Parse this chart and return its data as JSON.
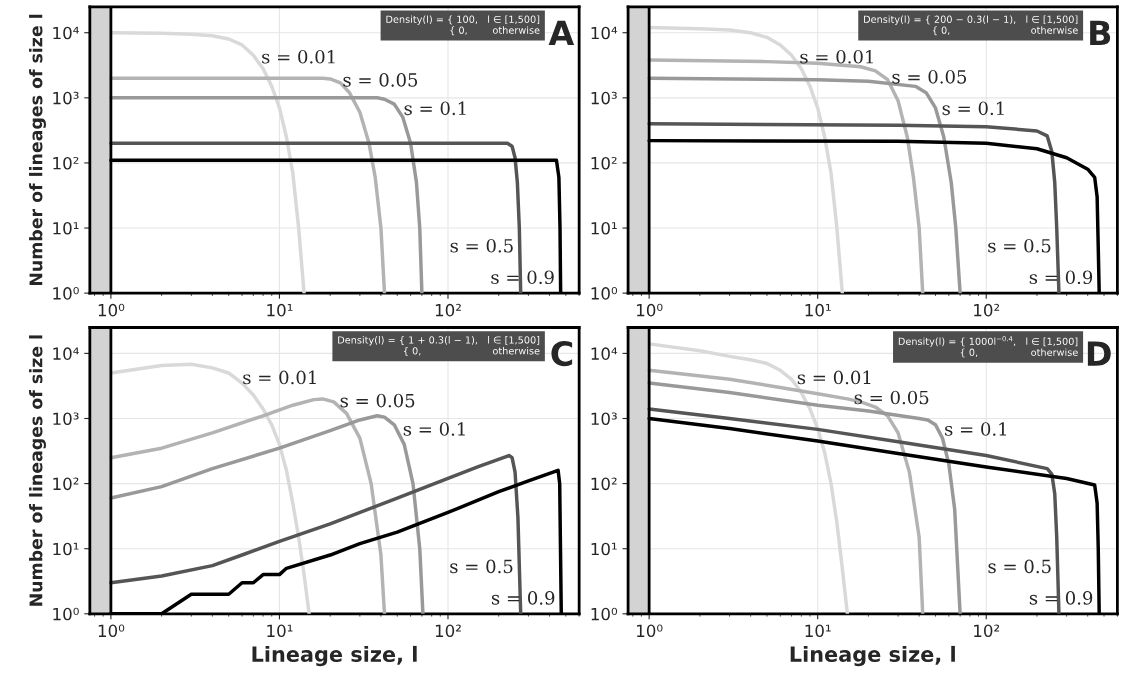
{
  "chart_data": [
    {
      "type": "line",
      "ylabel": "Number of lineages of size l",
      "annotations": [
        "Density(l) = { 100,   l ∈ [1,500]\n              { 0,        otherwise",
        "A"
      ],
      "log": "xy",
      "grid": true,
      "legend": false,
      "xlim": [
        0.75,
        600
      ],
      "ylim": [
        1,
        25000
      ],
      "xticks": [
        {
          "value": 1,
          "label": "10⁰"
        },
        {
          "value": 10,
          "label": "10¹"
        },
        {
          "value": 100,
          "label": "10²"
        }
      ],
      "yticks": [
        {
          "value": 1,
          "label": "10⁰"
        },
        {
          "value": 10,
          "label": "10¹"
        },
        {
          "value": 100,
          "label": "10²"
        },
        {
          "value": 1000,
          "label": "10³"
        },
        {
          "value": 10000,
          "label": "10⁴"
        }
      ],
      "bands": [
        {
          "axis": "x",
          "from": 0.75,
          "to": 1,
          "color": "#d3d3d3"
        }
      ],
      "ref_lines": [
        {
          "axis": "x",
          "value": 1,
          "color": "#000000"
        }
      ],
      "series": [
        {
          "name": "s = 0.01",
          "color": "#d9d9d9",
          "x": [
            1,
            2,
            3,
            4,
            5,
            6,
            7,
            8,
            9,
            10,
            11,
            12,
            13,
            14
          ],
          "values": [
            10000,
            9800,
            9500,
            9000,
            8000,
            6500,
            4500,
            2800,
            1500,
            700,
            250,
            70,
            10,
            1
          ]
        },
        {
          "name": "s = 0.05",
          "color": "#b3b3b3",
          "x": [
            1,
            10,
            18,
            20,
            23,
            26,
            30,
            34,
            37,
            40,
            42
          ],
          "values": [
            2000,
            2000,
            2000,
            1950,
            1700,
            1200,
            600,
            200,
            60,
            10,
            1
          ]
        },
        {
          "name": "s = 0.1",
          "color": "#999999",
          "x": [
            1,
            20,
            38,
            42,
            48,
            54,
            60,
            65,
            68,
            70
          ],
          "values": [
            1000,
            1000,
            1000,
            950,
            800,
            500,
            200,
            50,
            10,
            1
          ]
        },
        {
          "name": "s = 0.5",
          "color": "#555555",
          "x": [
            1,
            100,
            225,
            240,
            250,
            258,
            265,
            270
          ],
          "values": [
            200,
            200,
            200,
            180,
            120,
            50,
            10,
            1
          ]
        },
        {
          "name": "s = 0.9",
          "color": "#000000",
          "x": [
            1,
            100,
            300,
            440,
            455,
            462,
            466
          ],
          "values": [
            110,
            110,
            110,
            110,
            60,
            10,
            1
          ]
        }
      ]
    },
    {
      "type": "line",
      "annotations": [
        "Density(l) = { 200 − 0.3(l − 1),   l ∈ [1,500]\n              { 0,                          otherwise",
        "B"
      ],
      "log": "xy",
      "grid": true,
      "legend": false,
      "xlim": [
        0.75,
        600
      ],
      "ylim": [
        1,
        25000
      ],
      "xticks": [
        {
          "value": 1,
          "label": "10⁰"
        },
        {
          "value": 10,
          "label": "10¹"
        },
        {
          "value": 100,
          "label": "10²"
        }
      ],
      "yticks": [
        {
          "value": 1,
          "label": "10⁰"
        },
        {
          "value": 10,
          "label": "10¹"
        },
        {
          "value": 100,
          "label": "10²"
        },
        {
          "value": 1000,
          "label": "10³"
        },
        {
          "value": 10000,
          "label": "10⁴"
        }
      ],
      "bands": [
        {
          "axis": "x",
          "from": 0.75,
          "to": 1,
          "color": "#d3d3d3"
        }
      ],
      "ref_lines": [
        {
          "axis": "x",
          "value": 1,
          "color": "#000000"
        }
      ],
      "series": [
        {
          "name": "s = 0.01",
          "color": "#d9d9d9",
          "x": [
            1,
            2,
            3,
            4,
            5,
            6,
            7,
            8,
            9,
            10,
            11,
            12,
            13,
            14
          ],
          "values": [
            12000,
            11500,
            11000,
            10000,
            8500,
            6500,
            4500,
            2800,
            1500,
            700,
            250,
            70,
            10,
            1
          ]
        },
        {
          "name": "s = 0.05",
          "color": "#b3b3b3",
          "x": [
            1,
            5,
            10,
            18,
            22,
            26,
            30,
            34,
            37,
            40,
            42
          ],
          "values": [
            3800,
            3600,
            3400,
            3000,
            2600,
            1900,
            900,
            250,
            60,
            10,
            1
          ]
        },
        {
          "name": "s = 0.1",
          "color": "#999999",
          "x": [
            1,
            10,
            20,
            38,
            44,
            50,
            56,
            62,
            66,
            70
          ],
          "values": [
            2000,
            1900,
            1800,
            1500,
            1200,
            700,
            250,
            50,
            10,
            1
          ]
        },
        {
          "name": "s = 0.5",
          "color": "#555555",
          "x": [
            1,
            30,
            100,
            200,
            230,
            245,
            255,
            262,
            270
          ],
          "values": [
            400,
            380,
            360,
            310,
            260,
            150,
            50,
            10,
            1
          ]
        },
        {
          "name": "s = 0.9",
          "color": "#000000",
          "x": [
            1,
            30,
            100,
            200,
            300,
            400,
            440,
            455,
            462,
            468
          ],
          "values": [
            220,
            215,
            200,
            165,
            120,
            80,
            60,
            30,
            5,
            1
          ]
        }
      ]
    },
    {
      "type": "line",
      "xlabel": "Lineage size, l",
      "ylabel": "Number of lineages of size l",
      "annotations": [
        "Density(l) = { 1 + 0.3(l − 1),   l ∈ [1,500]\n              { 0,                       otherwise",
        "C"
      ],
      "log": "xy",
      "grid": true,
      "legend": false,
      "xlim": [
        0.75,
        600
      ],
      "ylim": [
        1,
        25000
      ],
      "xticks": [
        {
          "value": 1,
          "label": "10⁰"
        },
        {
          "value": 10,
          "label": "10¹"
        },
        {
          "value": 100,
          "label": "10²"
        }
      ],
      "yticks": [
        {
          "value": 1,
          "label": "10⁰"
        },
        {
          "value": 10,
          "label": "10¹"
        },
        {
          "value": 100,
          "label": "10²"
        },
        {
          "value": 1000,
          "label": "10³"
        },
        {
          "value": 10000,
          "label": "10⁴"
        }
      ],
      "bands": [
        {
          "axis": "x",
          "from": 0.75,
          "to": 1,
          "color": "#d3d3d3"
        }
      ],
      "ref_lines": [
        {
          "axis": "x",
          "value": 1,
          "color": "#000000"
        }
      ],
      "series": [
        {
          "name": "s = 0.01",
          "color": "#d9d9d9",
          "x": [
            1,
            2,
            3,
            4,
            5,
            6,
            7,
            8,
            9,
            10,
            11,
            12,
            13,
            14,
            15
          ],
          "values": [
            5000,
            6500,
            6800,
            6000,
            5000,
            3500,
            2300,
            1400,
            800,
            400,
            160,
            50,
            15,
            4,
            1
          ]
        },
        {
          "name": "s = 0.05",
          "color": "#b3b3b3",
          "x": [
            1,
            2,
            4,
            8,
            12,
            16,
            18,
            21,
            25,
            30,
            35,
            40,
            42
          ],
          "values": [
            250,
            350,
            600,
            1100,
            1600,
            1950,
            2000,
            1800,
            1200,
            500,
            100,
            8,
            1
          ]
        },
        {
          "name": "s = 0.1",
          "color": "#999999",
          "x": [
            1,
            2,
            4,
            10,
            20,
            30,
            38,
            42,
            48,
            55,
            62,
            68,
            71
          ],
          "values": [
            60,
            90,
            170,
            350,
            650,
            950,
            1100,
            1050,
            800,
            400,
            100,
            10,
            1
          ]
        },
        {
          "name": "s = 0.5",
          "color": "#555555",
          "x": [
            1,
            2,
            4,
            6,
            10,
            20,
            50,
            100,
            150,
            230,
            240,
            250,
            260,
            270
          ],
          "values": [
            3,
            3.8,
            5.5,
            8,
            13,
            24,
            60,
            120,
            180,
            270,
            250,
            150,
            30,
            1
          ]
        },
        {
          "name": "s = 0.9",
          "color": "#000000",
          "x": [
            1,
            2,
            3,
            5,
            6,
            7,
            8,
            10,
            11,
            20,
            30,
            50,
            100,
            200,
            300,
            450,
            460,
            465,
            470
          ],
          "values": [
            1,
            1,
            2,
            2,
            3,
            3,
            4,
            4,
            5,
            8,
            12,
            18,
            36,
            75,
            110,
            160,
            100,
            10,
            1
          ]
        }
      ]
    },
    {
      "type": "line",
      "xlabel": "Lineage size, l",
      "annotations": [
        "Density(l) = { 1000l$^{−0.4}$,   l ∈ [1,500]\n              { 0,                 otherwise",
        "D"
      ],
      "log": "xy",
      "grid": true,
      "legend": false,
      "xlim": [
        0.75,
        600
      ],
      "ylim": [
        1,
        25000
      ],
      "xticks": [
        {
          "value": 1,
          "label": "10⁰"
        },
        {
          "value": 10,
          "label": "10¹"
        },
        {
          "value": 100,
          "label": "10²"
        }
      ],
      "yticks": [
        {
          "value": 1,
          "label": "10⁰"
        },
        {
          "value": 10,
          "label": "10¹"
        },
        {
          "value": 100,
          "label": "10²"
        },
        {
          "value": 1000,
          "label": "10³"
        },
        {
          "value": 10000,
          "label": "10⁴"
        }
      ],
      "bands": [
        {
          "axis": "x",
          "from": 0.75,
          "to": 1,
          "color": "#d3d3d3"
        }
      ],
      "ref_lines": [
        {
          "axis": "x",
          "value": 1,
          "color": "#000000"
        }
      ],
      "series": [
        {
          "name": "s = 0.01",
          "color": "#d9d9d9",
          "x": [
            1,
            2,
            3,
            4,
            5,
            6,
            7,
            8,
            9,
            10,
            11,
            12,
            13,
            14,
            15
          ],
          "values": [
            14000,
            11000,
            9000,
            8000,
            7000,
            5500,
            4000,
            2500,
            1400,
            700,
            300,
            100,
            25,
            5,
            1
          ]
        },
        {
          "name": "s = 0.05",
          "color": "#b3b3b3",
          "x": [
            1,
            3,
            6,
            10,
            15,
            18,
            22,
            26,
            30,
            35,
            40,
            42
          ],
          "values": [
            5500,
            4000,
            3000,
            2400,
            2000,
            1800,
            1500,
            1100,
            600,
            150,
            15,
            1
          ]
        },
        {
          "name": "s = 0.1",
          "color": "#999999",
          "x": [
            1,
            3,
            10,
            20,
            40,
            45,
            50,
            55,
            60,
            65,
            70
          ],
          "values": [
            3500,
            2500,
            1600,
            1300,
            1000,
            950,
            800,
            500,
            200,
            40,
            1
          ]
        },
        {
          "name": "s = 0.5",
          "color": "#555555",
          "x": [
            1,
            3,
            10,
            30,
            100,
            230,
            245,
            255,
            262,
            270
          ],
          "values": [
            1400,
            1000,
            680,
            440,
            270,
            170,
            140,
            70,
            15,
            1
          ]
        },
        {
          "name": "s = 0.9",
          "color": "#000000",
          "x": [
            1,
            3,
            10,
            30,
            100,
            300,
            440,
            455,
            462,
            468
          ],
          "values": [
            1000,
            700,
            450,
            290,
            180,
            120,
            95,
            50,
            10,
            1
          ]
        }
      ]
    }
  ]
}
